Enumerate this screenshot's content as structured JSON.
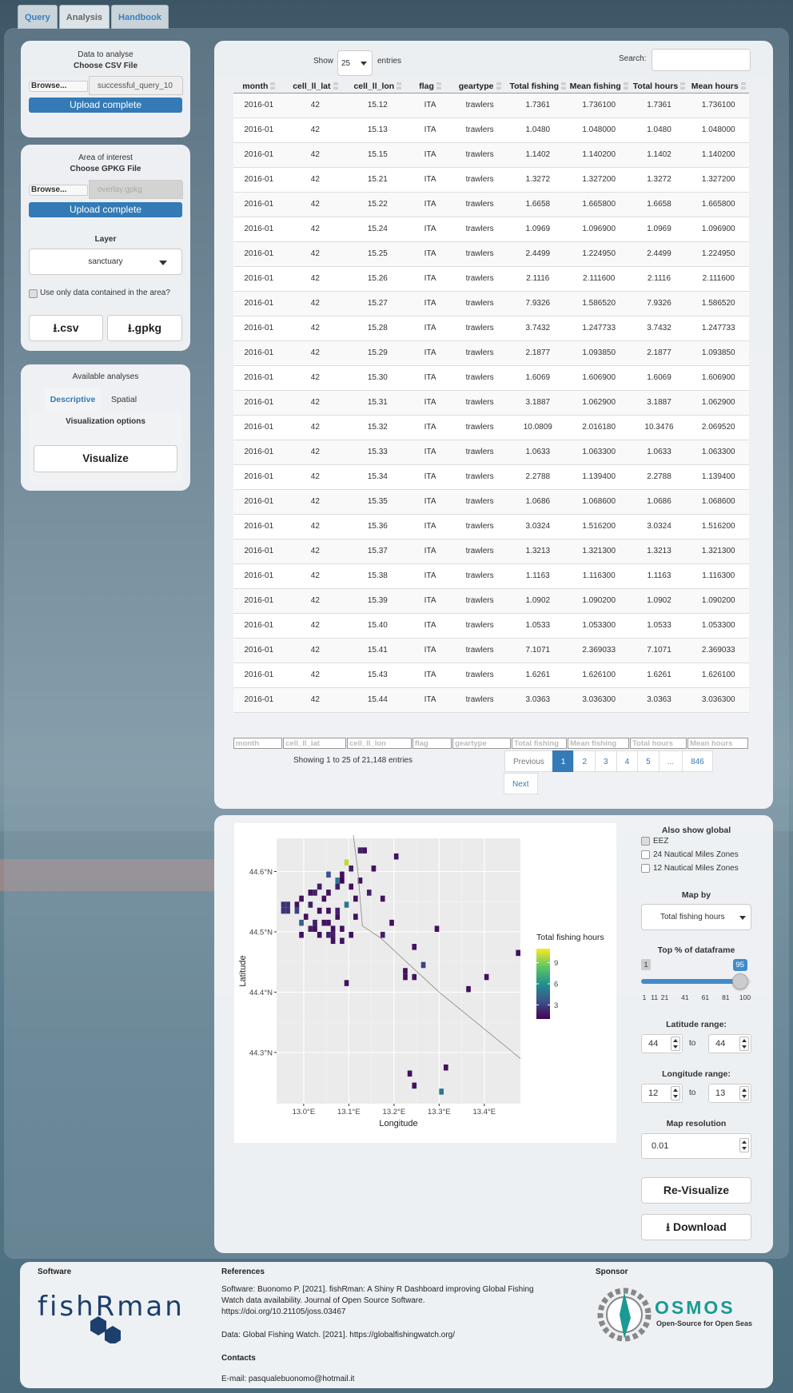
{
  "tabs": [
    {
      "label": "Query"
    },
    {
      "label": "Analysis"
    },
    {
      "label": "Handbook"
    }
  ],
  "data_panel": {
    "title": "Data to analyse",
    "file_label": "Choose CSV File",
    "browse": "Browse...",
    "file_name": "successful_query_10",
    "upload_status": "Upload complete"
  },
  "area_panel": {
    "title": "Area of interest",
    "file_label": "Choose GPKG File",
    "browse": "Browse...",
    "file_name": "overlay.gpkg",
    "upload_status": "Upload complete",
    "layer_label": "Layer",
    "layer_value": "sanctuary",
    "only_area_label": "Use only data contained in the area?",
    "csv_button": ".csv",
    "gpkg_button": ".gpkg"
  },
  "analyses_panel": {
    "title": "Available analyses",
    "tabs": [
      "Descriptive",
      "Spatial"
    ],
    "vis_options": "Visualization options",
    "visualize_button": "Visualize"
  },
  "table": {
    "show_label": "Show",
    "entries_value": "25",
    "entries_label": "entries",
    "search_label": "Search:",
    "columns": [
      "month",
      "cell_ll_lat",
      "cell_ll_lon",
      "flag",
      "geartype",
      "Total fishing",
      "Mean fishing",
      "Total hours",
      "Mean hours"
    ],
    "rows": [
      [
        "2016-01",
        "42",
        "15.12",
        "ITA",
        "trawlers",
        "1.7361",
        "1.736100",
        "1.7361",
        "1.736100"
      ],
      [
        "2016-01",
        "42",
        "15.13",
        "ITA",
        "trawlers",
        "1.0480",
        "1.048000",
        "1.0480",
        "1.048000"
      ],
      [
        "2016-01",
        "42",
        "15.15",
        "ITA",
        "trawlers",
        "1.1402",
        "1.140200",
        "1.1402",
        "1.140200"
      ],
      [
        "2016-01",
        "42",
        "15.21",
        "ITA",
        "trawlers",
        "1.3272",
        "1.327200",
        "1.3272",
        "1.327200"
      ],
      [
        "2016-01",
        "42",
        "15.22",
        "ITA",
        "trawlers",
        "1.6658",
        "1.665800",
        "1.6658",
        "1.665800"
      ],
      [
        "2016-01",
        "42",
        "15.24",
        "ITA",
        "trawlers",
        "1.0969",
        "1.096900",
        "1.0969",
        "1.096900"
      ],
      [
        "2016-01",
        "42",
        "15.25",
        "ITA",
        "trawlers",
        "2.4499",
        "1.224950",
        "2.4499",
        "1.224950"
      ],
      [
        "2016-01",
        "42",
        "15.26",
        "ITA",
        "trawlers",
        "2.1116",
        "2.111600",
        "2.1116",
        "2.111600"
      ],
      [
        "2016-01",
        "42",
        "15.27",
        "ITA",
        "trawlers",
        "7.9326",
        "1.586520",
        "7.9326",
        "1.586520"
      ],
      [
        "2016-01",
        "42",
        "15.28",
        "ITA",
        "trawlers",
        "3.7432",
        "1.247733",
        "3.7432",
        "1.247733"
      ],
      [
        "2016-01",
        "42",
        "15.29",
        "ITA",
        "trawlers",
        "2.1877",
        "1.093850",
        "2.1877",
        "1.093850"
      ],
      [
        "2016-01",
        "42",
        "15.30",
        "ITA",
        "trawlers",
        "1.6069",
        "1.606900",
        "1.6069",
        "1.606900"
      ],
      [
        "2016-01",
        "42",
        "15.31",
        "ITA",
        "trawlers",
        "3.1887",
        "1.062900",
        "3.1887",
        "1.062900"
      ],
      [
        "2016-01",
        "42",
        "15.32",
        "ITA",
        "trawlers",
        "10.0809",
        "2.016180",
        "10.3476",
        "2.069520"
      ],
      [
        "2016-01",
        "42",
        "15.33",
        "ITA",
        "trawlers",
        "1.0633",
        "1.063300",
        "1.0633",
        "1.063300"
      ],
      [
        "2016-01",
        "42",
        "15.34",
        "ITA",
        "trawlers",
        "2.2788",
        "1.139400",
        "2.2788",
        "1.139400"
      ],
      [
        "2016-01",
        "42",
        "15.35",
        "ITA",
        "trawlers",
        "1.0686",
        "1.068600",
        "1.0686",
        "1.068600"
      ],
      [
        "2016-01",
        "42",
        "15.36",
        "ITA",
        "trawlers",
        "3.0324",
        "1.516200",
        "3.0324",
        "1.516200"
      ],
      [
        "2016-01",
        "42",
        "15.37",
        "ITA",
        "trawlers",
        "1.3213",
        "1.321300",
        "1.3213",
        "1.321300"
      ],
      [
        "2016-01",
        "42",
        "15.38",
        "ITA",
        "trawlers",
        "1.1163",
        "1.116300",
        "1.1163",
        "1.116300"
      ],
      [
        "2016-01",
        "42",
        "15.39",
        "ITA",
        "trawlers",
        "1.0902",
        "1.090200",
        "1.0902",
        "1.090200"
      ],
      [
        "2016-01",
        "42",
        "15.40",
        "ITA",
        "trawlers",
        "1.0533",
        "1.053300",
        "1.0533",
        "1.053300"
      ],
      [
        "2016-01",
        "42",
        "15.41",
        "ITA",
        "trawlers",
        "7.1071",
        "2.369033",
        "7.1071",
        "2.369033"
      ],
      [
        "2016-01",
        "42",
        "15.43",
        "ITA",
        "trawlers",
        "1.6261",
        "1.626100",
        "1.6261",
        "1.626100"
      ],
      [
        "2016-01",
        "42",
        "15.44",
        "ITA",
        "trawlers",
        "3.0363",
        "3.036300",
        "3.0363",
        "3.036300"
      ]
    ],
    "info": "Showing 1 to 25 of 21,148 entries",
    "pagination": [
      "Previous",
      "1",
      "2",
      "3",
      "4",
      "5",
      "...",
      "846",
      "Next"
    ]
  },
  "map_controls": {
    "also_show": "Also show global",
    "eez": "EEZ",
    "nm24": "24 Nautical Miles Zones",
    "nm12": "12 Nautical Miles Zones",
    "map_by_label": "Map by",
    "map_by_value": "Total fishing hours",
    "top_label": "Top % of dataframe",
    "slider_min_value": "1",
    "slider_value": "95",
    "slider_fraction": 0.95,
    "slider_ticks": [
      "1",
      "11",
      "21",
      "41",
      "61",
      "81",
      "100"
    ],
    "lat_label": "Latitude range:",
    "lat_from": "44",
    "lat_to": "44",
    "lon_label": "Longitude range:",
    "lon_from": "12",
    "lon_to": "13",
    "to": "to",
    "res_label": "Map resolution",
    "res_value": "0.01",
    "revisualize_button": "Re-Visualize",
    "download_button": "Download"
  },
  "chart_data": {
    "type": "heatmap",
    "xlabel": "Longitude",
    "ylabel": "Latitude",
    "xlim": [
      12.94,
      13.48
    ],
    "ylim": [
      44.215,
      44.655
    ],
    "x_ticks": [
      {
        "v": 13.0,
        "label": "13.0°E"
      },
      {
        "v": 13.1,
        "label": "13.1°E"
      },
      {
        "v": 13.2,
        "label": "13.2°E"
      },
      {
        "v": 13.3,
        "label": "13.3°E"
      },
      {
        "v": 13.4,
        "label": "13.4°E"
      }
    ],
    "y_ticks": [
      {
        "v": 44.3,
        "label": "44.3°N"
      },
      {
        "v": 44.4,
        "label": "44.4°N"
      },
      {
        "v": 44.5,
        "label": "44.5°N"
      },
      {
        "v": 44.6,
        "label": "44.6°N"
      }
    ],
    "legend_title": "Total fishing hours",
    "legend_ticks": [
      {
        "v": 3,
        "label": "3"
      },
      {
        "v": 6,
        "label": "6"
      },
      {
        "v": 9,
        "label": "9"
      }
    ],
    "value_range": [
      1,
      11
    ],
    "cell_size": 0.01,
    "cells": [
      [
        13.12,
        44.63,
        2
      ],
      [
        13.13,
        44.63,
        1.5
      ],
      [
        13.2,
        44.62,
        1.5
      ],
      [
        13.09,
        44.61,
        10
      ],
      [
        13.1,
        44.6,
        2
      ],
      [
        13.15,
        44.6,
        1.5
      ],
      [
        13.05,
        44.59,
        3.5
      ],
      [
        13.08,
        44.59,
        1.5
      ],
      [
        13.07,
        44.58,
        5
      ],
      [
        13.08,
        44.58,
        1
      ],
      [
        13.12,
        44.58,
        1.5
      ],
      [
        13.03,
        44.57,
        2
      ],
      [
        13.07,
        44.57,
        2
      ],
      [
        13.1,
        44.57,
        1.5
      ],
      [
        13.01,
        44.56,
        1.5
      ],
      [
        13.02,
        44.56,
        2
      ],
      [
        13.05,
        44.56,
        1.5
      ],
      [
        13.14,
        44.56,
        2
      ],
      [
        12.99,
        44.55,
        1.5
      ],
      [
        13.04,
        44.55,
        1.5
      ],
      [
        13.11,
        44.55,
        1.5
      ],
      [
        13.17,
        44.55,
        1.5
      ],
      [
        12.95,
        44.54,
        2.5
      ],
      [
        12.96,
        44.54,
        2.5
      ],
      [
        12.98,
        44.54,
        1.5
      ],
      [
        13.01,
        44.54,
        2
      ],
      [
        13.09,
        44.54,
        5
      ],
      [
        12.95,
        44.53,
        2.5
      ],
      [
        12.96,
        44.53,
        2.5
      ],
      [
        12.98,
        44.53,
        3
      ],
      [
        13.03,
        44.53,
        1.5
      ],
      [
        13.05,
        44.53,
        1.5
      ],
      [
        13.07,
        44.53,
        2
      ],
      [
        13.0,
        44.52,
        1.5
      ],
      [
        13.07,
        44.52,
        1.5
      ],
      [
        13.11,
        44.52,
        1.5
      ],
      [
        12.99,
        44.51,
        4
      ],
      [
        13.02,
        44.51,
        2
      ],
      [
        13.04,
        44.51,
        1.5
      ],
      [
        13.05,
        44.51,
        1.5
      ],
      [
        13.19,
        44.51,
        1.5
      ],
      [
        13.01,
        44.5,
        2
      ],
      [
        13.02,
        44.5,
        1.5
      ],
      [
        13.06,
        44.5,
        1.5
      ],
      [
        13.08,
        44.5,
        1.5
      ],
      [
        13.29,
        44.5,
        1.5
      ],
      [
        12.99,
        44.49,
        1.5
      ],
      [
        13.03,
        44.49,
        1.5
      ],
      [
        13.05,
        44.49,
        2
      ],
      [
        13.06,
        44.49,
        2
      ],
      [
        13.1,
        44.49,
        1.5
      ],
      [
        13.17,
        44.49,
        2
      ],
      [
        13.06,
        44.48,
        1.5
      ],
      [
        13.08,
        44.48,
        1.5
      ],
      [
        13.24,
        44.47,
        1.5
      ],
      [
        13.47,
        44.46,
        1.5
      ],
      [
        13.26,
        44.44,
        3
      ],
      [
        13.22,
        44.43,
        1.5
      ],
      [
        13.22,
        44.42,
        1.5
      ],
      [
        13.24,
        44.42,
        1.5
      ],
      [
        13.4,
        44.42,
        1.5
      ],
      [
        13.09,
        44.41,
        1.5
      ],
      [
        13.36,
        44.4,
        1.5
      ],
      [
        13.31,
        44.27,
        1.5
      ],
      [
        13.23,
        44.26,
        1.5
      ],
      [
        13.24,
        44.24,
        1.5
      ],
      [
        13.3,
        44.23,
        5
      ]
    ],
    "boundary_line": [
      [
        13.11,
        44.66
      ],
      [
        13.12,
        44.6
      ],
      [
        13.13,
        44.51
      ],
      [
        13.17,
        44.49
      ],
      [
        13.3,
        44.4
      ],
      [
        13.48,
        44.29
      ]
    ]
  },
  "footer": {
    "software_title": "Software",
    "logo_text": "fishRman",
    "references_title": "References",
    "ref1_line1": "Software: Buonomo P. [2021]. fishRman: A Shiny R Dashboard improving Global Fishing",
    "ref1_line2": "Watch data availability. Journal of Open Source Software.",
    "ref1_line3": "https://doi.org/10.21105/joss.03467",
    "ref2": "Data: Global Fishing Watch. [2021]. https://globalfishingwatch.org/",
    "contacts_title": "Contacts",
    "email": "E-mail: pasqualebuonomo@hotmail.it",
    "sponsor_title": "Sponsor",
    "sponsor_name": "OSMOS",
    "sponsor_tagline": "Open-Source for Open Seas"
  },
  "colors": {
    "accent": "#337ab7",
    "viridis_low": "#440154",
    "viridis_mid": "#21908c",
    "viridis_high": "#fde725",
    "osmos_teal": "#1a9a92"
  }
}
